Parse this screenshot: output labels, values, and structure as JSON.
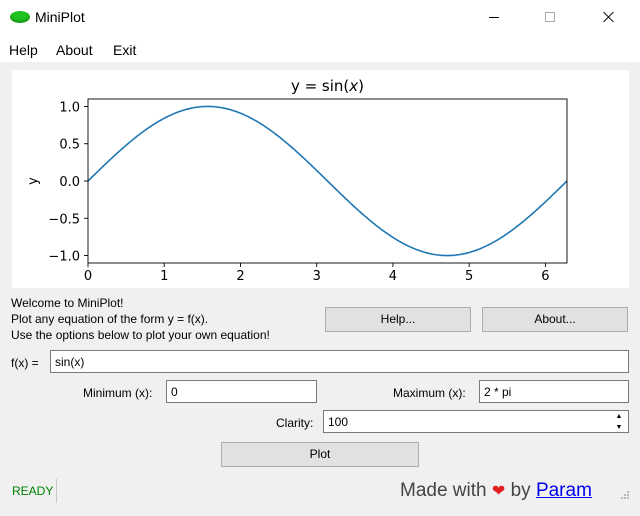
{
  "window": {
    "title": "MiniPlot",
    "icon": "miniplot-green-oval-icon",
    "controls": [
      "minimize-icon",
      "maximize-icon",
      "close-icon"
    ]
  },
  "menu": [
    "Help",
    "About",
    "Exit"
  ],
  "chart_data": {
    "type": "line",
    "title_prefix": "y = sin(",
    "title_var": "x",
    "title_suffix": ")",
    "xlabel": "",
    "ylabel": "y",
    "xlim": [
      0,
      6.2832
    ],
    "ylim": [
      -1.1,
      1.1
    ],
    "xticks": [
      0,
      1,
      2,
      3,
      4,
      5,
      6
    ],
    "yticks": [
      -1.0,
      -0.5,
      0.0,
      0.5,
      1.0
    ],
    "ytick_labels": [
      "−1.0",
      "−0.5",
      "0.0",
      "0.5",
      "1.0"
    ],
    "series": [
      {
        "color": "#1f77b4",
        "function": "sin(x)",
        "x": [
          0,
          0.3142,
          0.6283,
          0.9425,
          1.2566,
          1.5708,
          1.885,
          2.1991,
          2.5133,
          2.8274,
          3.1416,
          3.4558,
          3.7699,
          4.0841,
          4.3982,
          4.7124,
          5.0265,
          5.3407,
          5.6549,
          5.969,
          6.2832
        ],
        "y": [
          0,
          0.309,
          0.5878,
          0.809,
          0.9511,
          1.0,
          0.9511,
          0.809,
          0.5878,
          0.309,
          0,
          -0.309,
          -0.5878,
          -0.809,
          -0.9511,
          -1.0,
          -0.9511,
          -0.809,
          -0.5878,
          -0.309,
          0
        ]
      }
    ],
    "grid": false
  },
  "welcome": {
    "line1": "Welcome to MiniPlot!",
    "line2": "Plot any equation of the form y = f(x).",
    "line3": "Use the options below to plot your own equation!"
  },
  "buttons": {
    "help": "Help...",
    "about": "About...",
    "plot": "Plot"
  },
  "form": {
    "fx_label": "f(x) =",
    "fx_value": "sin(x)",
    "min_label": "Minimum (x):",
    "min_value": "0",
    "max_label": "Maximum (x):",
    "max_value": "2 * pi",
    "clarity_label": "Clarity:",
    "clarity_value": "100"
  },
  "status": {
    "text": "READY",
    "color": "#008000"
  },
  "credit": {
    "prefix": "Made with",
    "heart": "❤",
    "by": "by",
    "author": "Param"
  }
}
